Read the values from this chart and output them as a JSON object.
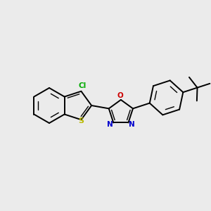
{
  "bg_color": "#ebebeb",
  "bond_color": "#000000",
  "S_color": "#b8b800",
  "N_color": "#0000cc",
  "O_color": "#cc0000",
  "Cl_color": "#00aa00",
  "figsize": [
    3.0,
    3.0
  ],
  "dpi": 100,
  "lw": 1.4,
  "lw_inner": 1.0,
  "font_size": 7.5,
  "xlim": [
    0,
    12
  ],
  "ylim": [
    0,
    12
  ]
}
